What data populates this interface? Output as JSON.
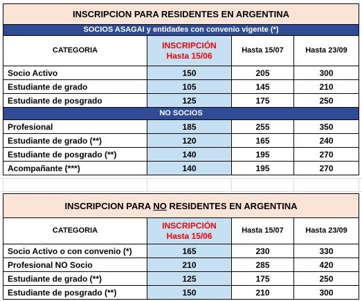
{
  "residentes": {
    "title": "INSCRIPCION PARA RESIDENTES EN ARGENTINA",
    "band_socios": "SOCIOS ASAGAI y entidades con convenio vigente (*)",
    "headers": {
      "categoria": "CATEGORIA",
      "inscripcion_line1": "INSCRIPCIÓN",
      "inscripcion_line2": "Hasta 15/06",
      "col2": "Hasta 15/07",
      "col3": "Hasta 23/09"
    },
    "socios_rows": [
      {
        "categoria": "Socio Activo",
        "v1": "150",
        "v2": "205",
        "v3": "300"
      },
      {
        "categoria": "Estudiante de grado",
        "v1": "105",
        "v2": "145",
        "v3": "210"
      },
      {
        "categoria": "Estudiante de posgrado",
        "v1": "125",
        "v2": "175",
        "v3": "250"
      }
    ],
    "band_no_socios": "NO SOCIOS",
    "no_socios_rows": [
      {
        "categoria": "Profesional",
        "v1": "185",
        "v2": "255",
        "v3": "350"
      },
      {
        "categoria": "Estudiante de grado (**)",
        "v1": "120",
        "v2": "165",
        "v3": "240"
      },
      {
        "categoria": "Estudiante de posgrado (**)",
        "v1": "140",
        "v2": "195",
        "v3": "270"
      },
      {
        "categoria": "Acompañante (***)",
        "v1": "140",
        "v2": "195",
        "v3": "270"
      }
    ]
  },
  "no_residentes": {
    "title_pre": "INSCRIPCION PARA ",
    "title_underlined": "NO",
    "title_post": " RESIDENTES EN ARGENTINA",
    "headers": {
      "categoria": "CATEGORIA",
      "inscripcion_line1": "INSCRIPCIÓN",
      "inscripcion_line2": "Hasta 15/06",
      "col2": "Hasta 15/07",
      "col3": "Hasta 23/09"
    },
    "rows": [
      {
        "categoria": "Socio Activo o con convenio (*)",
        "v1": "165",
        "v2": "230",
        "v3": "330"
      },
      {
        "categoria": "Profesional NO Socio",
        "v1": "210",
        "v2": "285",
        "v3": "420"
      },
      {
        "categoria": "Estudiante de grado (**)",
        "v1": "125",
        "v2": "175",
        "v3": "250"
      },
      {
        "categoria": "Estudiante de posgrado (**)",
        "v1": "150",
        "v2": "210",
        "v3": "300"
      }
    ]
  },
  "colors": {
    "title_bg": "#fbe4d5",
    "band_bg": "#2f4d96",
    "highlight_bg": "#c5e0f3",
    "inscripcion_text": "#ff0000"
  }
}
